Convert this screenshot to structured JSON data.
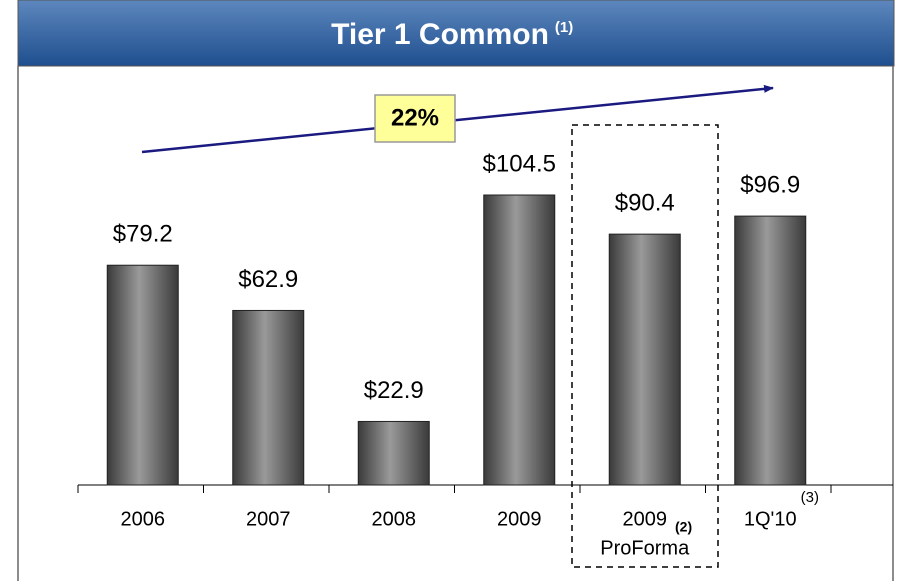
{
  "chart_data": {
    "type": "bar",
    "title": "Tier 1 Common",
    "title_note": "(1)",
    "categories": [
      "2006",
      "2007",
      "2008",
      "2009",
      "2009",
      "1Q'10"
    ],
    "category_sublabels": [
      null,
      null,
      null,
      null,
      "ProForma",
      null
    ],
    "category_notes": [
      null,
      null,
      null,
      null,
      "(2)",
      "(3)"
    ],
    "values": [
      79.2,
      62.9,
      22.9,
      104.5,
      90.4,
      96.9
    ],
    "value_labels": [
      "$79.2",
      "$62.9",
      "$22.9",
      "$104.5",
      "$90.4",
      "$96.9"
    ],
    "annotation": "22%",
    "color": "#5a5a5a"
  }
}
